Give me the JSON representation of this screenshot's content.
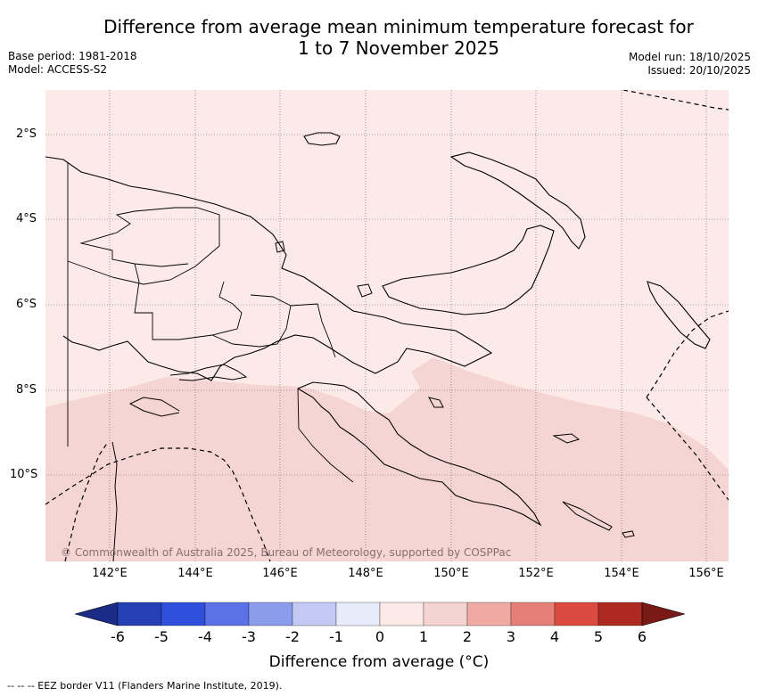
{
  "header": {
    "title_line1": "Difference from average mean minimum temperature forecast for",
    "title_line2": "1 to 7 November 2025",
    "base_period": "Base period: 1981-2018",
    "model": "Model: ACCESS-S2",
    "model_run": "Model run: 18/10/2025",
    "issued": "Issued: 20/10/2025"
  },
  "map": {
    "lat_labels": [
      "2°S",
      "4°S",
      "6°S",
      "8°S",
      "10°S"
    ],
    "lon_labels": [
      "142°E",
      "144°E",
      "146°E",
      "148°E",
      "150°E",
      "152°E",
      "154°E",
      "156°E"
    ],
    "credit": "© Commonwealth of Australia 2025, Bureau of Meteorology, supported by COSPPac",
    "background_color": "#fbeae8",
    "anomaly_color": "#f5d5d3"
  },
  "colorbar": {
    "ticks": [
      "-6",
      "-5",
      "-4",
      "-3",
      "-2",
      "-1",
      "0",
      "1",
      "2",
      "3",
      "4",
      "5",
      "6"
    ],
    "colors": [
      "#1a2c86",
      "#2440b4",
      "#2f4fdc",
      "#5b72e6",
      "#8a9ceb",
      "#c2c9f3",
      "#e8ebfa",
      "#fbeae8",
      "#f5d3d0",
      "#efaaa4",
      "#e57f78",
      "#db4a3e",
      "#ad2a22",
      "#7a1a16"
    ],
    "label": "Difference from average (°C)"
  },
  "footnote": "-- -- -- EEZ border V11 (Flanders Marine Institute, 2019)."
}
